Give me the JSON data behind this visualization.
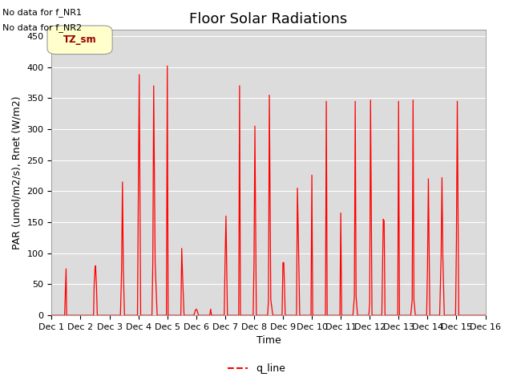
{
  "title": "Floor Solar Radiations",
  "xlabel": "Time",
  "ylabel": "PAR (umol/m2/s), Rnet (W/m2)",
  "ylim": [
    0,
    460
  ],
  "xlim": [
    0,
    15
  ],
  "xtick_labels": [
    "Dec 1",
    "Dec 2",
    "Dec 3",
    "Dec 4",
    "Dec 5",
    "Dec 6",
    "Dec 7",
    "Dec 8",
    "Dec 9",
    "Dec 10",
    "Dec 11",
    "Dec 12",
    "Dec 13",
    "Dec 14",
    "Dec 15",
    "Dec 16"
  ],
  "xtick_positions": [
    0,
    1,
    2,
    3,
    4,
    5,
    6,
    7,
    8,
    9,
    10,
    11,
    12,
    13,
    14,
    15
  ],
  "line_color": "#FF0000",
  "bg_color": "#DCDCDC",
  "legend_box_label": "TZ_sm",
  "legend_box_color": "#FFFFCC",
  "legend_box_edge": "#888888",
  "no_data_text1": "No data for f_NR1",
  "no_data_text2": "No data for f_NR2",
  "legend_line_label": "q_line",
  "title_fontsize": 13,
  "axis_label_fontsize": 9,
  "tick_fontsize": 8,
  "x_data": [
    0.0,
    0.45,
    0.5,
    0.52,
    0.55,
    1.0,
    1.45,
    1.47,
    1.5,
    1.52,
    1.55,
    1.58,
    1.65,
    2.0,
    2.38,
    2.42,
    2.45,
    2.48,
    2.52,
    2.6,
    2.92,
    2.97,
    3.0,
    3.03,
    3.08,
    3.42,
    3.47,
    3.5,
    3.53,
    3.58,
    3.65,
    3.92,
    3.97,
    4.0,
    4.03,
    4.08,
    4.42,
    4.47,
    4.5,
    4.53,
    4.58,
    4.65,
    4.92,
    4.97,
    5.0,
    5.03,
    5.08,
    5.12,
    5.42,
    5.45,
    5.47,
    5.5,
    5.53,
    5.58,
    5.65,
    5.92,
    5.97,
    6.0,
    6.03,
    6.08,
    6.42,
    6.47,
    6.5,
    6.53,
    6.58,
    6.65,
    6.92,
    6.97,
    7.0,
    7.03,
    7.08,
    7.42,
    7.47,
    7.5,
    7.53,
    7.58,
    7.65,
    7.92,
    7.97,
    8.0,
    8.03,
    8.08,
    8.42,
    8.47,
    8.5,
    8.53,
    8.58,
    8.65,
    8.92,
    8.97,
    9.0,
    9.03,
    9.08,
    9.42,
    9.47,
    9.5,
    9.53,
    9.58,
    9.65,
    9.92,
    9.97,
    10.0,
    10.03,
    10.08,
    10.42,
    10.47,
    10.5,
    10.53,
    10.58,
    10.65,
    10.92,
    10.97,
    11.0,
    11.03,
    11.08,
    11.42,
    11.47,
    11.5,
    11.53,
    11.58,
    11.65,
    11.92,
    11.97,
    12.0,
    12.03,
    12.08,
    12.42,
    12.47,
    12.5,
    12.53,
    12.58,
    12.65,
    12.92,
    12.97,
    13.0,
    13.03,
    13.08,
    13.42,
    13.47,
    13.5,
    13.53,
    13.58,
    13.65,
    13.92,
    13.97,
    14.0,
    14.03,
    14.08,
    14.42,
    14.47,
    14.5,
    14.53,
    14.58,
    14.65,
    14.92,
    14.97,
    15.0
  ],
  "y_data": [
    0.0,
    0.0,
    75.0,
    0.0,
    0.0,
    0.0,
    0.0,
    48.0,
    75.0,
    80.0,
    48.0,
    0.0,
    0.0,
    0.0,
    0.0,
    73.0,
    215.0,
    73.0,
    0.0,
    0.0,
    0.0,
    0.0,
    205.0,
    388.0,
    0.0,
    0.0,
    0.0,
    85.0,
    370.0,
    85.0,
    0.0,
    0.0,
    0.0,
    402.0,
    0.0,
    0.0,
    0.0,
    0.0,
    108.0,
    62.0,
    0.0,
    0.0,
    0.0,
    8.0,
    10.0,
    8.0,
    0.0,
    0.0,
    0.0,
    0.0,
    0.0,
    10.0,
    0.0,
    0.0,
    0.0,
    0.0,
    0.0,
    90.0,
    160.0,
    0.0,
    0.0,
    0.0,
    370.0,
    0.0,
    0.0,
    0.0,
    0.0,
    0.0,
    85.0,
    305.0,
    0.0,
    0.0,
    0.0,
    25.0,
    355.0,
    25.0,
    0.0,
    0.0,
    0.0,
    85.0,
    85.0,
    0.0,
    0.0,
    0.0,
    205.0,
    135.0,
    0.0,
    0.0,
    0.0,
    0.0,
    226.0,
    0.0,
    0.0,
    0.0,
    0.0,
    345.0,
    0.0,
    0.0,
    0.0,
    0.0,
    0.0,
    165.0,
    0.0,
    0.0,
    0.0,
    30.0,
    345.0,
    30.0,
    0.0,
    0.0,
    0.0,
    0.0,
    20.0,
    347.0,
    0.0,
    0.0,
    155.0,
    152.0,
    0.0,
    0.0,
    0.0,
    0.0,
    0.0,
    345.0,
    0.0,
    0.0,
    0.0,
    25.0,
    347.0,
    25.0,
    0.0,
    0.0,
    0.0,
    0.0,
    80.0,
    220.0,
    0.0,
    0.0,
    95.0,
    222.0,
    95.0,
    0.0,
    0.0,
    0.0,
    0.0,
    120.0,
    345.0,
    0.0,
    0.0,
    0.0,
    0.0,
    0.0,
    0.0,
    0.0,
    0.0,
    0.0,
    0.0
  ]
}
